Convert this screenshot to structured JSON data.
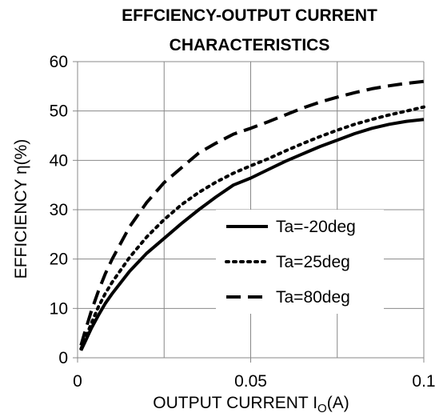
{
  "chart_data": {
    "type": "line",
    "title_lines": [
      "EFFCIENCY-OUTPUT CURRENT",
      "CHARACTERISTICS"
    ],
    "xlabel": "OUTPUT CURRENT I",
    "xlabel_sub": "O",
    "xlabel_unit": "(A)",
    "ylabel": "EFFICIENCY  η(%)",
    "xlim": [
      0,
      0.1
    ],
    "ylim": [
      0,
      60
    ],
    "x_ticks": [
      0,
      0.05,
      0.1
    ],
    "x_tick_labels": [
      "0",
      "0.05",
      "0.1"
    ],
    "y_ticks": [
      0,
      10,
      20,
      30,
      40,
      50,
      60
    ],
    "y_tick_labels": [
      "0",
      "10",
      "20",
      "30",
      "40",
      "50",
      "60"
    ],
    "x_minor_grid": [
      0.025,
      0.075
    ],
    "grid": true,
    "legend_position": "center-right",
    "series": [
      {
        "name": "Ta=-20deg",
        "style": "solid",
        "color": "#000000",
        "x": [
          0.001,
          0.002,
          0.004,
          0.006,
          0.008,
          0.01,
          0.015,
          0.02,
          0.025,
          0.03,
          0.035,
          0.04,
          0.045,
          0.05,
          0.055,
          0.06,
          0.065,
          0.07,
          0.075,
          0.08,
          0.085,
          0.09,
          0.095,
          0.1
        ],
        "y": [
          1.5,
          3.0,
          6.0,
          8.6,
          11.0,
          13.0,
          17.5,
          21.2,
          24.2,
          27.2,
          30.0,
          32.6,
          35.0,
          36.4,
          38.1,
          39.8,
          41.3,
          42.8,
          44.1,
          45.4,
          46.5,
          47.3,
          47.9,
          48.3
        ]
      },
      {
        "name": "Ta=25deg",
        "style": "dotted",
        "color": "#000000",
        "x": [
          0.001,
          0.002,
          0.004,
          0.006,
          0.008,
          0.01,
          0.015,
          0.02,
          0.025,
          0.03,
          0.035,
          0.04,
          0.045,
          0.05,
          0.055,
          0.06,
          0.065,
          0.07,
          0.075,
          0.08,
          0.085,
          0.09,
          0.095,
          0.1
        ],
        "y": [
          1.8,
          3.5,
          7.0,
          10.3,
          13.0,
          15.3,
          20.3,
          24.5,
          28.0,
          31.0,
          33.5,
          35.6,
          37.4,
          38.9,
          40.3,
          41.9,
          43.4,
          44.8,
          46.1,
          47.3,
          48.3,
          49.2,
          50.0,
          50.8
        ]
      },
      {
        "name": "Ta=80deg",
        "style": "dashed",
        "color": "#000000",
        "x": [
          0.001,
          0.002,
          0.004,
          0.006,
          0.008,
          0.01,
          0.015,
          0.02,
          0.025,
          0.03,
          0.035,
          0.04,
          0.045,
          0.05,
          0.055,
          0.06,
          0.065,
          0.07,
          0.075,
          0.08,
          0.085,
          0.09,
          0.095,
          0.1
        ],
        "y": [
          2.5,
          5.0,
          9.5,
          13.5,
          17.0,
          20.0,
          26.5,
          31.5,
          35.5,
          38.5,
          41.5,
          43.5,
          45.3,
          46.5,
          47.8,
          49.2,
          50.6,
          51.8,
          52.8,
          53.7,
          54.5,
          55.1,
          55.6,
          56.0
        ]
      }
    ]
  }
}
